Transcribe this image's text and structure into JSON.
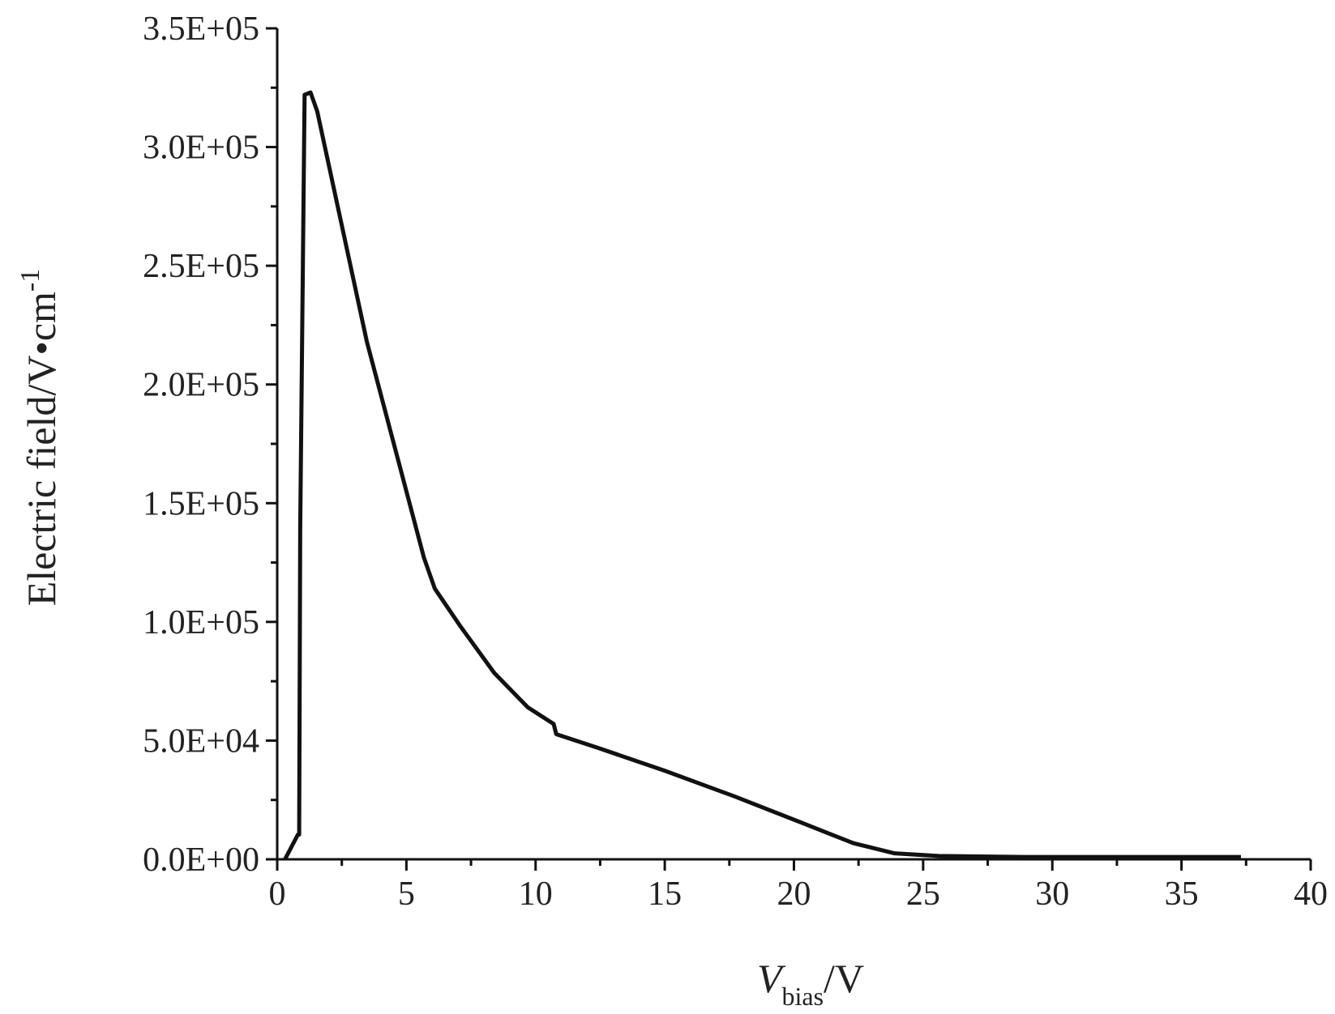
{
  "chart_data": {
    "type": "line",
    "xlabel": {
      "italic": "V",
      "subscript": "bias",
      "rest": "/V"
    },
    "ylabel": {
      "text": "Electric field/V•cm",
      "superscript": "-1"
    },
    "series": [
      {
        "color": "#111111",
        "x": [
          0.3,
          0.8,
          0.85,
          0.89,
          1.06,
          1.29,
          1.55,
          3.47,
          5.68,
          6.1,
          7.1,
          8.4,
          9.7,
          10.7,
          10.8,
          12.4,
          15.0,
          17.7,
          20.3,
          22.3,
          23.9,
          25.6,
          28.9,
          37.3
        ],
        "values": [
          0,
          10400,
          10400,
          139000,
          322000,
          323000,
          315000,
          218000,
          127000,
          114000,
          98000,
          78500,
          64000,
          57000,
          52700,
          47000,
          37300,
          26500,
          15400,
          6800,
          2500,
          1400,
          1000,
          1000
        ]
      }
    ],
    "xlim": [
      0,
      40
    ],
    "xticks": [
      0,
      5,
      10,
      15,
      20,
      25,
      30,
      35,
      40
    ],
    "xminorticks": [
      2.5,
      7.5,
      12.5,
      17.5,
      22.5,
      27.5,
      32.5,
      37.5
    ],
    "ylim": [
      0,
      350000
    ],
    "yticks": [
      {
        "value": 0,
        "label": "0.0E+00"
      },
      {
        "value": 50000,
        "label": "5.0E+04"
      },
      {
        "value": 100000,
        "label": "1.0E+05"
      },
      {
        "value": 150000,
        "label": "1.5E+05"
      },
      {
        "value": 200000,
        "label": "2.0E+05"
      },
      {
        "value": 250000,
        "label": "2.5E+05"
      },
      {
        "value": 300000,
        "label": "3.0E+05"
      },
      {
        "value": 350000,
        "label": "3.5E+05"
      }
    ],
    "yminorticks": [
      25000,
      75000,
      125000,
      175000,
      225000,
      275000,
      325000
    ]
  }
}
